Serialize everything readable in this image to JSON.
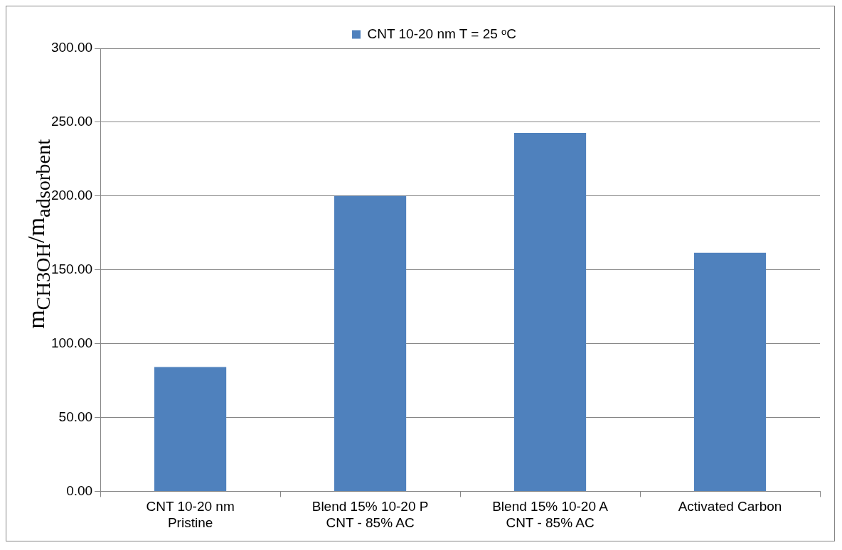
{
  "chart_data": {
    "type": "bar",
    "categories": [
      "CNT 10-20 nm\nPristine",
      "Blend 15% 10-20 P\nCNT - 85% AC",
      "Blend 15% 10-20 A\nCNT - 85% AC",
      "Activated Carbon"
    ],
    "series": [
      {
        "name": "CNT 10-20 nm T = 25 ᵒC",
        "color": "#4f81bd",
        "values": [
          84.2,
          200.0,
          242.7,
          161.5
        ]
      }
    ],
    "ylabel": "m$_{CH3OH}$/m$_{adsorbent}$",
    "ylim": [
      0,
      300
    ],
    "yticks": [
      {
        "value": 0,
        "label": "0.00"
      },
      {
        "value": 50,
        "label": "50.00"
      },
      {
        "value": 100,
        "label": "100.00"
      },
      {
        "value": 150,
        "label": "150.00"
      },
      {
        "value": 200,
        "label": "200.00"
      },
      {
        "value": 250,
        "label": "250.00"
      },
      {
        "value": 300,
        "label": "300.00"
      }
    ],
    "grid": "y",
    "legend": "top"
  }
}
